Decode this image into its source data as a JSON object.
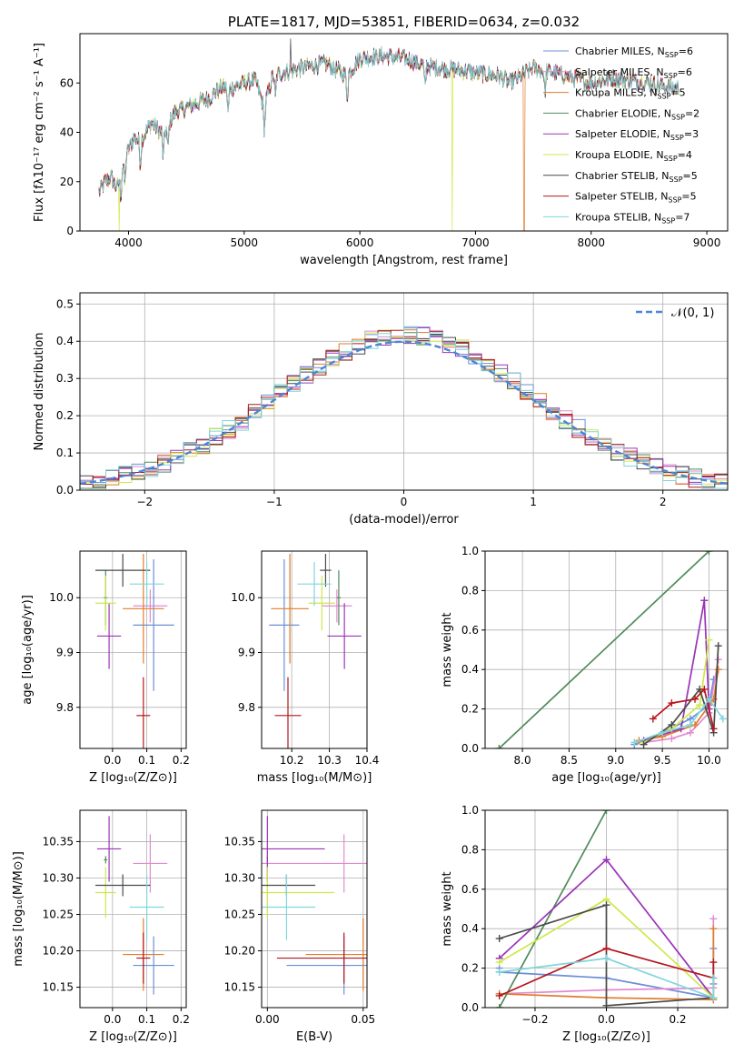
{
  "colors": {
    "Chabrier MILES": "#6b8fd6",
    "Salpeter MILES": "#e28ad0",
    "Kroupa MILES": "#e07c2a",
    "Chabrier ELODIE": "#4f8a5a",
    "Salpeter ELODIE": "#9b34b8",
    "Kroupa ELODIE": "#cfe84a",
    "Chabrier STELIB": "#4a4a4a",
    "Salpeter STELIB": "#b5161c",
    "Kroupa STELIB": "#7fd6dc",
    "normal": "#4a86d8"
  },
  "chart_data": [
    {
      "id": "spectrum",
      "type": "line",
      "title": "PLATE=1817, MJD=53851, FIBERID=0634, z=0.032",
      "xlabel": "wavelength [Angstrom, rest frame]",
      "ylabel": "Flux [fλ10⁻¹⁷ erg cm⁻² s⁻¹ A⁻¹]",
      "xlim": [
        3580,
        9180
      ],
      "ylim": [
        0,
        80
      ],
      "xticks": [
        4000,
        5000,
        6000,
        7000,
        8000,
        9000
      ],
      "yticks": [
        0,
        20,
        40,
        60
      ],
      "legend_position": "upper right",
      "legend": [
        {
          "model": "Chabrier MILES",
          "label": "Chabrier MILES, N",
          "sub": "SSP",
          "n": "=6"
        },
        {
          "model": "Salpeter MILES",
          "label": "Salpeter MILES, N",
          "sub": "SSP",
          "n": "=6"
        },
        {
          "model": "Kroupa MILES",
          "label": "Kroupa MILES, N",
          "sub": "SSP",
          "n": "=5"
        },
        {
          "model": "Chabrier ELODIE",
          "label": "Chabrier ELODIE, N",
          "sub": "SSP",
          "n": "=2"
        },
        {
          "model": "Salpeter ELODIE",
          "label": "Salpeter ELODIE, N",
          "sub": "SSP",
          "n": "=3"
        },
        {
          "model": "Kroupa ELODIE",
          "label": "Kroupa ELODIE, N",
          "sub": "SSP",
          "n": "=4"
        },
        {
          "model": "Chabrier STELIB",
          "label": "Chabrier STELIB, N",
          "sub": "SSP",
          "n": "=5"
        },
        {
          "model": "Salpeter STELIB",
          "label": "Salpeter STELIB, N",
          "sub": "SSP",
          "n": "=5"
        },
        {
          "model": "Kroupa STELIB",
          "label": "Kroupa STELIB, N",
          "sub": "SSP",
          "n": "=7"
        }
      ],
      "continuum": [
        [
          3750,
          16
        ],
        [
          3800,
          20
        ],
        [
          3850,
          22
        ],
        [
          3900,
          17
        ],
        [
          3950,
          26
        ],
        [
          4000,
          33
        ],
        [
          4050,
          38
        ],
        [
          4100,
          36
        ],
        [
          4200,
          44
        ],
        [
          4300,
          39
        ],
        [
          4400,
          48
        ],
        [
          4500,
          50
        ],
        [
          4600,
          52
        ],
        [
          4700,
          54
        ],
        [
          4800,
          58
        ],
        [
          4900,
          58
        ],
        [
          5000,
          60
        ],
        [
          5100,
          61
        ],
        [
          5170,
          50
        ],
        [
          5250,
          63
        ],
        [
          5400,
          65
        ],
        [
          5500,
          66
        ],
        [
          5700,
          68
        ],
        [
          5890,
          63
        ],
        [
          6000,
          70
        ],
        [
          6200,
          71
        ],
        [
          6400,
          70
        ],
        [
          6563,
          67
        ],
        [
          6700,
          66
        ],
        [
          6900,
          65
        ],
        [
          7000,
          64
        ],
        [
          7200,
          63
        ],
        [
          7300,
          60
        ],
        [
          7500,
          66
        ],
        [
          7700,
          64
        ],
        [
          8000,
          60
        ],
        [
          8200,
          62
        ],
        [
          8500,
          60
        ],
        [
          8700,
          58
        ]
      ],
      "dropouts": [
        {
          "model": "Kroupa ELODIE",
          "x": 3920
        },
        {
          "model": "Kroupa ELODIE",
          "x": 6800
        },
        {
          "model": "Kroupa MILES",
          "x": 7420
        },
        {
          "model": "Chabrier STELIB",
          "x": 5400,
          "y": 78
        }
      ]
    },
    {
      "id": "residuals",
      "type": "line",
      "xlabel": "(data-model)/error",
      "ylabel": "Normed distribution",
      "xlim": [
        -2.5,
        2.5
      ],
      "ylim": [
        0,
        0.53
      ],
      "xticks": [
        -2,
        -1,
        0,
        1,
        2
      ],
      "yticks": [
        0.0,
        0.1,
        0.2,
        0.3,
        0.4,
        0.5
      ],
      "grid": true,
      "legend_position": "upper right",
      "reference_label": "𝒩(0, 1)",
      "histogram_bins": {
        "start": -2.5,
        "width": 0.1,
        "count": 50
      },
      "series_scatter_amplitude": 0.025
    },
    {
      "id": "age-vs-Z",
      "type": "scatter",
      "xlabel": "Z [log₁₀(Z/Z⊙)]",
      "ylabel": "age  [log₁₀(age/yr)]",
      "xlim": [
        -0.095,
        0.215
      ],
      "ylim": [
        9.725,
        10.085
      ],
      "xticks": [
        0.0,
        0.1,
        0.2
      ],
      "yticks": [
        9.8,
        9.9,
        10.0
      ],
      "grid": true
    },
    {
      "id": "age-vs-mass",
      "type": "scatter",
      "xlabel": "mass [log₁₀(M/M⊙)]",
      "xlim": [
        10.12,
        10.4
      ],
      "ylim": [
        9.725,
        10.085
      ],
      "xticks": [
        10.2,
        10.3,
        10.4
      ],
      "yticks": [
        9.8,
        9.9,
        10.0
      ],
      "grid": true
    },
    {
      "id": "massweight-vs-age",
      "type": "line",
      "xlabel": "age  [log₁₀(age/yr)]",
      "ylabel": "mass weight",
      "xlim": [
        7.6,
        10.2
      ],
      "ylim": [
        0,
        1
      ],
      "xticks": [
        8.0,
        8.5,
        9.0,
        9.5,
        10.0
      ],
      "yticks": [
        0.0,
        0.2,
        0.4,
        0.6,
        0.8,
        1.0
      ],
      "grid": true
    },
    {
      "id": "mass-vs-Z",
      "type": "scatter",
      "xlabel": "Z [log₁₀(Z/Z⊙)]",
      "ylabel": "mass [log₁₀(M/M⊙)]",
      "xlim": [
        -0.095,
        0.215
      ],
      "ylim": [
        10.122,
        10.393
      ],
      "xticks": [
        0.0,
        0.1,
        0.2
      ],
      "yticks": [
        10.15,
        10.2,
        10.25,
        10.3,
        10.35
      ],
      "grid": true
    },
    {
      "id": "mass-vs-EBV",
      "type": "scatter",
      "xlabel": "E(B-V)",
      "xlim": [
        -0.003,
        0.052
      ],
      "ylim": [
        10.122,
        10.393
      ],
      "xticks": [
        0.0,
        0.05
      ],
      "yticks": [
        10.15,
        10.2,
        10.25,
        10.3,
        10.35
      ],
      "grid": true
    },
    {
      "id": "massweight-vs-Z",
      "type": "line",
      "xlabel": "Z [log₁₀(Z/Z⊙)]",
      "ylabel": "mass weight",
      "xlim": [
        -0.34,
        0.34
      ],
      "ylim": [
        0,
        1
      ],
      "xticks": [
        -0.2,
        0.0,
        0.2
      ],
      "yticks": [
        0.0,
        0.2,
        0.4,
        0.6,
        0.8,
        1.0
      ],
      "grid": true
    }
  ],
  "fits": [
    {
      "model": "Chabrier MILES",
      "Z": 0.12,
      "Z_err": 0.06,
      "age": 9.95,
      "age_err": 0.12,
      "mass": 10.18,
      "mass_err": 0.04,
      "ebv": 0.04,
      "ebv_err": 0.03
    },
    {
      "model": "Salpeter MILES",
      "Z": 0.11,
      "Z_err": 0.05,
      "age": 9.985,
      "age_err": 0.03,
      "mass": 10.32,
      "mass_err": 0.04,
      "ebv": 0.04,
      "ebv_err": 0.05
    },
    {
      "model": "Kroupa MILES",
      "Z": 0.09,
      "Z_err": 0.06,
      "age": 9.98,
      "age_err": 0.1,
      "mass": 10.195,
      "mass_err": 0.05,
      "ebv": 0.05,
      "ebv_err": 0.03
    },
    {
      "model": "Chabrier ELODIE",
      "Z": -0.02,
      "Z_err": 0.005,
      "age": 10.0,
      "age_err": 0.05,
      "mass": 10.325,
      "mass_err": 0.005,
      "ebv": 0.0,
      "ebv_err": 0.0
    },
    {
      "model": "Salpeter ELODIE",
      "Z": -0.01,
      "Z_err": 0.035,
      "age": 9.93,
      "age_err": 0.06,
      "mass": 10.34,
      "mass_err": 0.045,
      "ebv": 0.0,
      "ebv_err": 0.03
    },
    {
      "model": "Kroupa ELODIE",
      "Z": -0.02,
      "Z_err": 0.03,
      "age": 9.99,
      "age_err": 0.05,
      "mass": 10.28,
      "mass_err": 0.035,
      "ebv": 0.0,
      "ebv_err": 0.035
    },
    {
      "model": "Chabrier STELIB",
      "Z": 0.03,
      "Z_err": 0.08,
      "age": 10.05,
      "age_err": 0.03,
      "mass": 10.29,
      "mass_err": 0.015,
      "ebv": 0.01,
      "ebv_err": 0.015
    },
    {
      "model": "Salpeter STELIB",
      "Z": 0.09,
      "Z_err": 0.02,
      "age": 9.785,
      "age_err": 0.07,
      "mass": 10.19,
      "mass_err": 0.035,
      "ebv": 0.04,
      "ebv_err": 0.035
    },
    {
      "model": "Kroupa STELIB",
      "Z": 0.1,
      "Z_err": 0.05,
      "age": 10.025,
      "age_err": 0.04,
      "mass": 10.26,
      "mass_err": 0.045,
      "ebv": 0.01,
      "ebv_err": 0.015
    }
  ],
  "ssp_weights": [
    {
      "model": "Chabrier MILES",
      "ages": [
        9.2,
        9.5,
        9.8,
        10.0,
        10.05
      ],
      "weights": [
        0.02,
        0.08,
        0.15,
        0.22,
        0.35
      ],
      "Z": [
        -0.3,
        -0.3,
        0.0,
        0.3,
        0.3,
        0.3
      ],
      "Zw": [
        0.2,
        0.18,
        0.15,
        0.05,
        0.3,
        0.12
      ]
    },
    {
      "model": "Salpeter MILES",
      "ages": [
        9.3,
        9.6,
        9.8,
        10.0,
        10.1
      ],
      "weights": [
        0.03,
        0.05,
        0.08,
        0.18,
        0.45
      ],
      "Z": [
        -0.3,
        0.0,
        0.3,
        0.3
      ],
      "Zw": [
        0.07,
        0.09,
        0.1,
        0.45
      ]
    },
    {
      "model": "Kroupa MILES",
      "ages": [
        9.25,
        9.5,
        9.85,
        10.05,
        10.1
      ],
      "weights": [
        0.04,
        0.06,
        0.12,
        0.25,
        0.4
      ],
      "Z": [
        -0.3,
        0.0,
        0.3,
        0.3
      ],
      "Zw": [
        0.07,
        0.05,
        0.04,
        0.4
      ]
    },
    {
      "model": "Chabrier ELODIE",
      "ages": [
        7.75,
        10.0
      ],
      "weights": [
        0.0,
        1.0
      ],
      "Z": [
        -0.3,
        0.0
      ],
      "Zw": [
        0.0,
        1.0
      ]
    },
    {
      "model": "Salpeter ELODIE",
      "ages": [
        9.3,
        9.7,
        9.95,
        10.0
      ],
      "weights": [
        0.04,
        0.1,
        0.75,
        0.2
      ],
      "Z": [
        -0.3,
        0.0,
        0.3
      ],
      "Zw": [
        0.25,
        0.75,
        0.05
      ]
    },
    {
      "model": "Kroupa ELODIE",
      "ages": [
        9.3,
        9.6,
        9.9,
        10.0
      ],
      "weights": [
        0.03,
        0.1,
        0.22,
        0.55
      ],
      "Z": [
        -0.3,
        0.0,
        0.3
      ],
      "Zw": [
        0.23,
        0.55,
        0.05
      ]
    },
    {
      "model": "Chabrier STELIB",
      "ages": [
        9.3,
        9.6,
        9.9,
        10.05,
        10.1
      ],
      "weights": [
        0.02,
        0.12,
        0.3,
        0.08,
        0.52
      ],
      "Z": [
        -0.3,
        0.0,
        0.0,
        0.3
      ],
      "Zw": [
        0.35,
        0.52,
        0.01,
        0.05
      ]
    },
    {
      "model": "Salpeter STELIB",
      "ages": [
        9.4,
        9.6,
        9.85,
        9.95,
        10.05
      ],
      "weights": [
        0.15,
        0.23,
        0.25,
        0.3,
        0.1
      ],
      "Z": [
        -0.3,
        0.0,
        0.3,
        0.3
      ],
      "Zw": [
        0.06,
        0.3,
        0.15,
        0.23
      ]
    },
    {
      "model": "Kroupa STELIB",
      "ages": [
        9.2,
        9.5,
        9.8,
        10.0,
        10.15
      ],
      "weights": [
        0.03,
        0.08,
        0.12,
        0.25,
        0.15
      ],
      "Z": [
        -0.3,
        0.0,
        0.3,
        0.3
      ],
      "Zw": [
        0.18,
        0.25,
        0.05,
        0.15
      ]
    }
  ]
}
